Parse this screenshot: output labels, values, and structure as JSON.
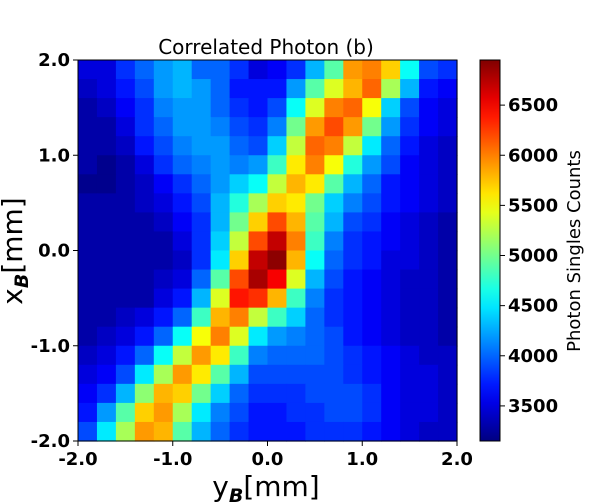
{
  "chart_data": {
    "type": "heatmap",
    "title": "Correlated Photon (b)",
    "xlabel": {
      "main": "y",
      "sub": "B",
      "unit": "[mm]"
    },
    "ylabel": {
      "main": "x",
      "sub": "B",
      "unit": "[mm]"
    },
    "xlim": [
      -2.0,
      2.0
    ],
    "ylim": [
      -2.0,
      2.0
    ],
    "x_ticks": [
      -2.0,
      -1.0,
      0.0,
      1.0,
      2.0
    ],
    "x_tick_labels": [
      "-2.0",
      "-1.0",
      "0.0",
      "1.0",
      "2.0"
    ],
    "y_ticks": [
      -2.0,
      -1.0,
      0.0,
      1.0,
      2.0
    ],
    "y_tick_labels": [
      "-2.0",
      "-1.0",
      "0.0",
      "1.0",
      "2.0"
    ],
    "colormap": "jet",
    "colorbar": {
      "label": "Photon Singles Counts",
      "vmin": 3150,
      "vmax": 6950,
      "ticks": [
        3500,
        4000,
        4500,
        5000,
        5500,
        6000,
        6500
      ],
      "tick_labels": [
        "3500",
        "4000",
        "4500",
        "5000",
        "5500",
        "6000",
        "6500"
      ]
    },
    "grid": false,
    "n_cols": 20,
    "n_rows": 20,
    "value_rows_top_to_bottom": [
      [
        3500,
        3500,
        3800,
        4000,
        4200,
        4300,
        4000,
        4000,
        3800,
        3500,
        3600,
        3800,
        4300,
        4900,
        5900,
        6000,
        5700,
        4600,
        3900,
        3800
      ],
      [
        3400,
        3500,
        3700,
        3900,
        4200,
        4300,
        4200,
        4000,
        3700,
        3700,
        3700,
        4200,
        4900,
        5400,
        5800,
        6100,
        5200,
        4300,
        3700,
        3600
      ],
      [
        3300,
        3400,
        3600,
        3800,
        4100,
        4200,
        4200,
        4000,
        3800,
        3700,
        3900,
        4600,
        5400,
        6000,
        6100,
        5500,
        4400,
        3900,
        3600,
        3500
      ],
      [
        3300,
        3300,
        3500,
        3800,
        4000,
        4200,
        4200,
        4100,
        3900,
        3800,
        4100,
        5000,
        5900,
        6200,
        5900,
        5000,
        4200,
        3800,
        3600,
        3500
      ],
      [
        3300,
        3300,
        3400,
        3700,
        3900,
        4100,
        4200,
        4200,
        4000,
        3900,
        4400,
        5300,
        6100,
        6000,
        5300,
        4500,
        4000,
        3700,
        3500,
        3400
      ],
      [
        3300,
        3200,
        3300,
        3500,
        3800,
        4000,
        4100,
        4200,
        4100,
        4200,
        4800,
        5600,
        6000,
        5500,
        4700,
        4200,
        3900,
        3600,
        3500,
        3400
      ],
      [
        3200,
        3200,
        3300,
        3400,
        3600,
        3800,
        4000,
        4200,
        4400,
        4600,
        5300,
        5800,
        5600,
        4900,
        4300,
        4000,
        3700,
        3600,
        3500,
        3400
      ],
      [
        3300,
        3300,
        3300,
        3400,
        3500,
        3700,
        3900,
        4300,
        4700,
        5200,
        5700,
        5600,
        5000,
        4400,
        4100,
        3900,
        3700,
        3600,
        3500,
        3400
      ],
      [
        3300,
        3300,
        3300,
        3300,
        3400,
        3600,
        3800,
        4300,
        5000,
        5700,
        6200,
        5800,
        4900,
        4300,
        3900,
        3800,
        3600,
        3500,
        3400,
        3300
      ],
      [
        3300,
        3300,
        3300,
        3300,
        3300,
        3500,
        3800,
        4400,
        5300,
        6200,
        6700,
        6000,
        4800,
        4100,
        3800,
        3700,
        3600,
        3500,
        3400,
        3300
      ],
      [
        3300,
        3300,
        3300,
        3300,
        3300,
        3400,
        3800,
        4500,
        5700,
        6700,
        6900,
        5800,
        4600,
        4000,
        3800,
        3700,
        3500,
        3500,
        3400,
        3300
      ],
      [
        3300,
        3300,
        3300,
        3300,
        3400,
        3500,
        4000,
        4900,
        6200,
        6800,
        6500,
        5400,
        4300,
        3900,
        3700,
        3600,
        3500,
        3400,
        3400,
        3300
      ],
      [
        3300,
        3300,
        3300,
        3300,
        3500,
        3700,
        4300,
        5400,
        6400,
        6300,
        5800,
        4800,
        4100,
        3800,
        3700,
        3600,
        3500,
        3400,
        3400,
        3300
      ],
      [
        3300,
        3300,
        3400,
        3500,
        3700,
        4000,
        4800,
        5800,
        6000,
        5300,
        4800,
        4400,
        4000,
        3800,
        3700,
        3600,
        3500,
        3400,
        3400,
        3300
      ],
      [
        3300,
        3400,
        3500,
        3700,
        4000,
        4600,
        5500,
        6000,
        5400,
        4500,
        4200,
        4100,
        4000,
        3900,
        3700,
        3600,
        3500,
        3400,
        3400,
        3300
      ],
      [
        3400,
        3500,
        3700,
        4000,
        4600,
        5300,
        5900,
        5600,
        4800,
        4100,
        4000,
        4000,
        4000,
        3900,
        3800,
        3700,
        3600,
        3500,
        3400,
        3400
      ],
      [
        3500,
        3600,
        3900,
        4500,
        5200,
        5900,
        5600,
        4900,
        4300,
        3900,
        3900,
        3900,
        3900,
        3900,
        3800,
        3700,
        3600,
        3500,
        3500,
        3400
      ],
      [
        3600,
        3800,
        4300,
        5100,
        5800,
        5700,
        5000,
        4400,
        4000,
        3800,
        3800,
        3800,
        3900,
        3900,
        3900,
        3800,
        3600,
        3500,
        3500,
        3400
      ],
      [
        3700,
        4200,
        4900,
        5700,
        5900,
        5200,
        4500,
        4100,
        3900,
        3700,
        3700,
        3800,
        3800,
        3900,
        3900,
        3800,
        3600,
        3500,
        3500,
        3400
      ],
      [
        3900,
        4500,
        5200,
        5900,
        5800,
        4900,
        4300,
        4000,
        3800,
        3700,
        3700,
        3700,
        3800,
        3800,
        3800,
        3700,
        3600,
        3500,
        3400,
        3400
      ]
    ]
  }
}
